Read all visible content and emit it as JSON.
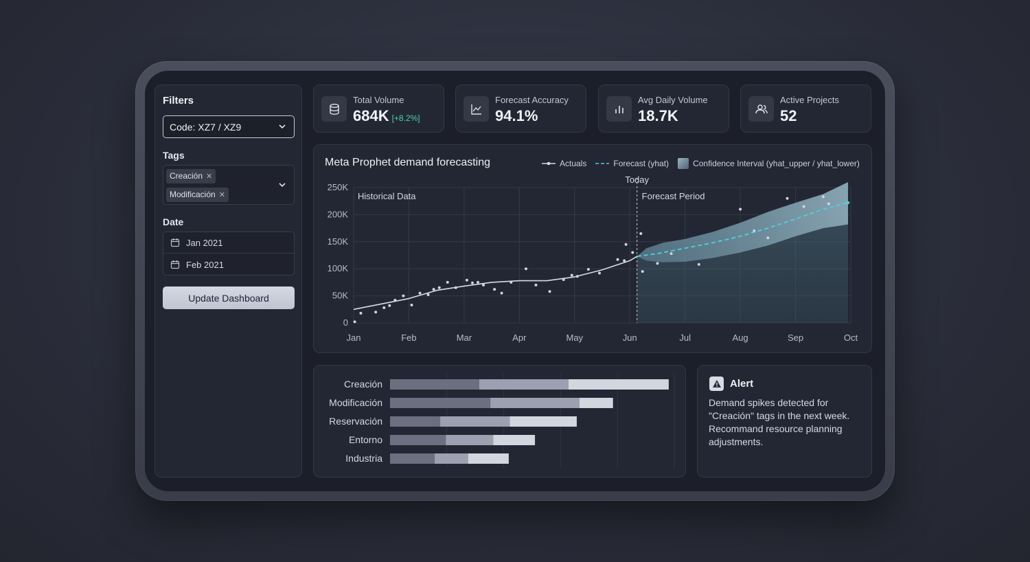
{
  "sidebar": {
    "title": "Filters",
    "code_select": "Code: XZ7 / XZ9",
    "tags_label": "Tags",
    "tags": [
      "Creación",
      "Modificación"
    ],
    "date_label": "Date",
    "date_from": "Jan 2021",
    "date_to": "Feb 2021",
    "update_button": "Update Dashboard"
  },
  "kpis": [
    {
      "label": "Total Volume",
      "value": "684K",
      "delta": "[+8.2%]",
      "icon": "database-icon"
    },
    {
      "label": "Forecast Accuracy",
      "value": "94.1%",
      "icon": "line-chart-icon"
    },
    {
      "label": "Avg Daily Volume",
      "value": "18.7K",
      "icon": "bar-chart-icon"
    },
    {
      "label": "Active Projects",
      "value": "52",
      "icon": "users-icon"
    }
  ],
  "colors": {
    "accent": "#4fd1d9",
    "actuals": "#d7dbe4",
    "delta": "#4fd1a8",
    "band": "#7fa6b8"
  },
  "chart_data": {
    "type": "line",
    "title": "Meta Prophet demand forecasting",
    "legend": [
      "Actuals",
      "Forecast (yhat)",
      "Confidence Interval (yhat_upper / yhat_lower)"
    ],
    "annotations": {
      "today": "Today",
      "historical": "Historical Data",
      "forecast": "Forecast Period"
    },
    "x_ticks": [
      "Jan",
      "Feb",
      "Mar",
      "Apr",
      "May",
      "Jun",
      "Jul",
      "Aug",
      "Sep",
      "Oct"
    ],
    "y_ticks": [
      "0",
      "50K",
      "100K",
      "150K",
      "200K",
      "250K"
    ],
    "ylim": [
      0,
      250000
    ],
    "today_month": 5.13,
    "actuals_line": [
      [
        0,
        25000
      ],
      [
        0.5,
        35000
      ],
      [
        1,
        45000
      ],
      [
        1.5,
        60000
      ],
      [
        2,
        68000
      ],
      [
        2.5,
        75000
      ],
      [
        3,
        78000
      ],
      [
        3.5,
        78000
      ],
      [
        4,
        85000
      ],
      [
        4.5,
        98000
      ],
      [
        5,
        115000
      ],
      [
        5.13,
        123000
      ]
    ],
    "scatter": [
      [
        0.02,
        2000
      ],
      [
        0.13,
        18000
      ],
      [
        0.4,
        20000
      ],
      [
        0.55,
        28000
      ],
      [
        0.65,
        32000
      ],
      [
        0.75,
        42000
      ],
      [
        0.9,
        50000
      ],
      [
        1.05,
        33000
      ],
      [
        1.2,
        55000
      ],
      [
        1.35,
        52000
      ],
      [
        1.45,
        62000
      ],
      [
        1.55,
        65000
      ],
      [
        1.7,
        75000
      ],
      [
        1.85,
        65000
      ],
      [
        2.05,
        79000
      ],
      [
        2.15,
        74000
      ],
      [
        2.25,
        75000
      ],
      [
        2.35,
        70000
      ],
      [
        2.55,
        62000
      ],
      [
        2.68,
        55000
      ],
      [
        2.85,
        75000
      ],
      [
        3.12,
        100000
      ],
      [
        3.3,
        70000
      ],
      [
        3.55,
        58000
      ],
      [
        3.8,
        80000
      ],
      [
        3.95,
        88000
      ],
      [
        4.05,
        86000
      ],
      [
        4.25,
        99000
      ],
      [
        4.45,
        92000
      ],
      [
        4.9,
        115000
      ],
      [
        4.78,
        117000
      ],
      [
        4.93,
        145000
      ],
      [
        5.05,
        130000
      ],
      [
        5.2,
        165000
      ],
      [
        5.23,
        95000
      ],
      [
        5.5,
        110000
      ],
      [
        5.75,
        128000
      ],
      [
        6.25,
        108000
      ],
      [
        7.0,
        210000
      ],
      [
        7.25,
        170000
      ],
      [
        7.5,
        157000
      ],
      [
        7.85,
        230000
      ],
      [
        8.15,
        215000
      ],
      [
        8.5,
        233000
      ],
      [
        8.6,
        220000
      ]
    ],
    "forecast": [
      [
        5.13,
        123000
      ],
      [
        5.5,
        128000
      ],
      [
        6,
        138000
      ],
      [
        6.5,
        148000
      ],
      [
        7,
        160000
      ],
      [
        7.5,
        175000
      ],
      [
        8,
        192000
      ],
      [
        8.5,
        210000
      ],
      [
        8.95,
        222000
      ]
    ],
    "ci_upper": [
      [
        5.13,
        123000
      ],
      [
        5.3,
        138000
      ],
      [
        5.6,
        148000
      ],
      [
        6,
        155000
      ],
      [
        6.5,
        168000
      ],
      [
        7,
        185000
      ],
      [
        7.5,
        205000
      ],
      [
        8,
        222000
      ],
      [
        8.5,
        238000
      ],
      [
        8.95,
        260000
      ]
    ],
    "ci_lower": [
      [
        5.13,
        123000
      ],
      [
        5.3,
        115000
      ],
      [
        5.6,
        112000
      ],
      [
        6,
        113000
      ],
      [
        6.5,
        120000
      ],
      [
        7,
        130000
      ],
      [
        7.5,
        143000
      ],
      [
        8,
        160000
      ],
      [
        8.5,
        175000
      ],
      [
        8.95,
        182000
      ]
    ]
  },
  "bar_chart": {
    "type": "bar",
    "categories": [
      "Creación",
      "Modificación",
      "Reservación",
      "Entorno",
      "Industria"
    ],
    "segments": [
      [
        1.6,
        1.6,
        1.8
      ],
      [
        1.8,
        1.6,
        0.6
      ],
      [
        0.9,
        1.25,
        1.2
      ],
      [
        1.0,
        0.85,
        0.75
      ],
      [
        0.8,
        0.6,
        0.73
      ]
    ],
    "xlim": [
      0,
      5.1
    ]
  },
  "alert": {
    "title": "Alert",
    "message": "Demand spikes detected for \"Creación\" tags in the next week. Recommand resource planning adjustments."
  }
}
